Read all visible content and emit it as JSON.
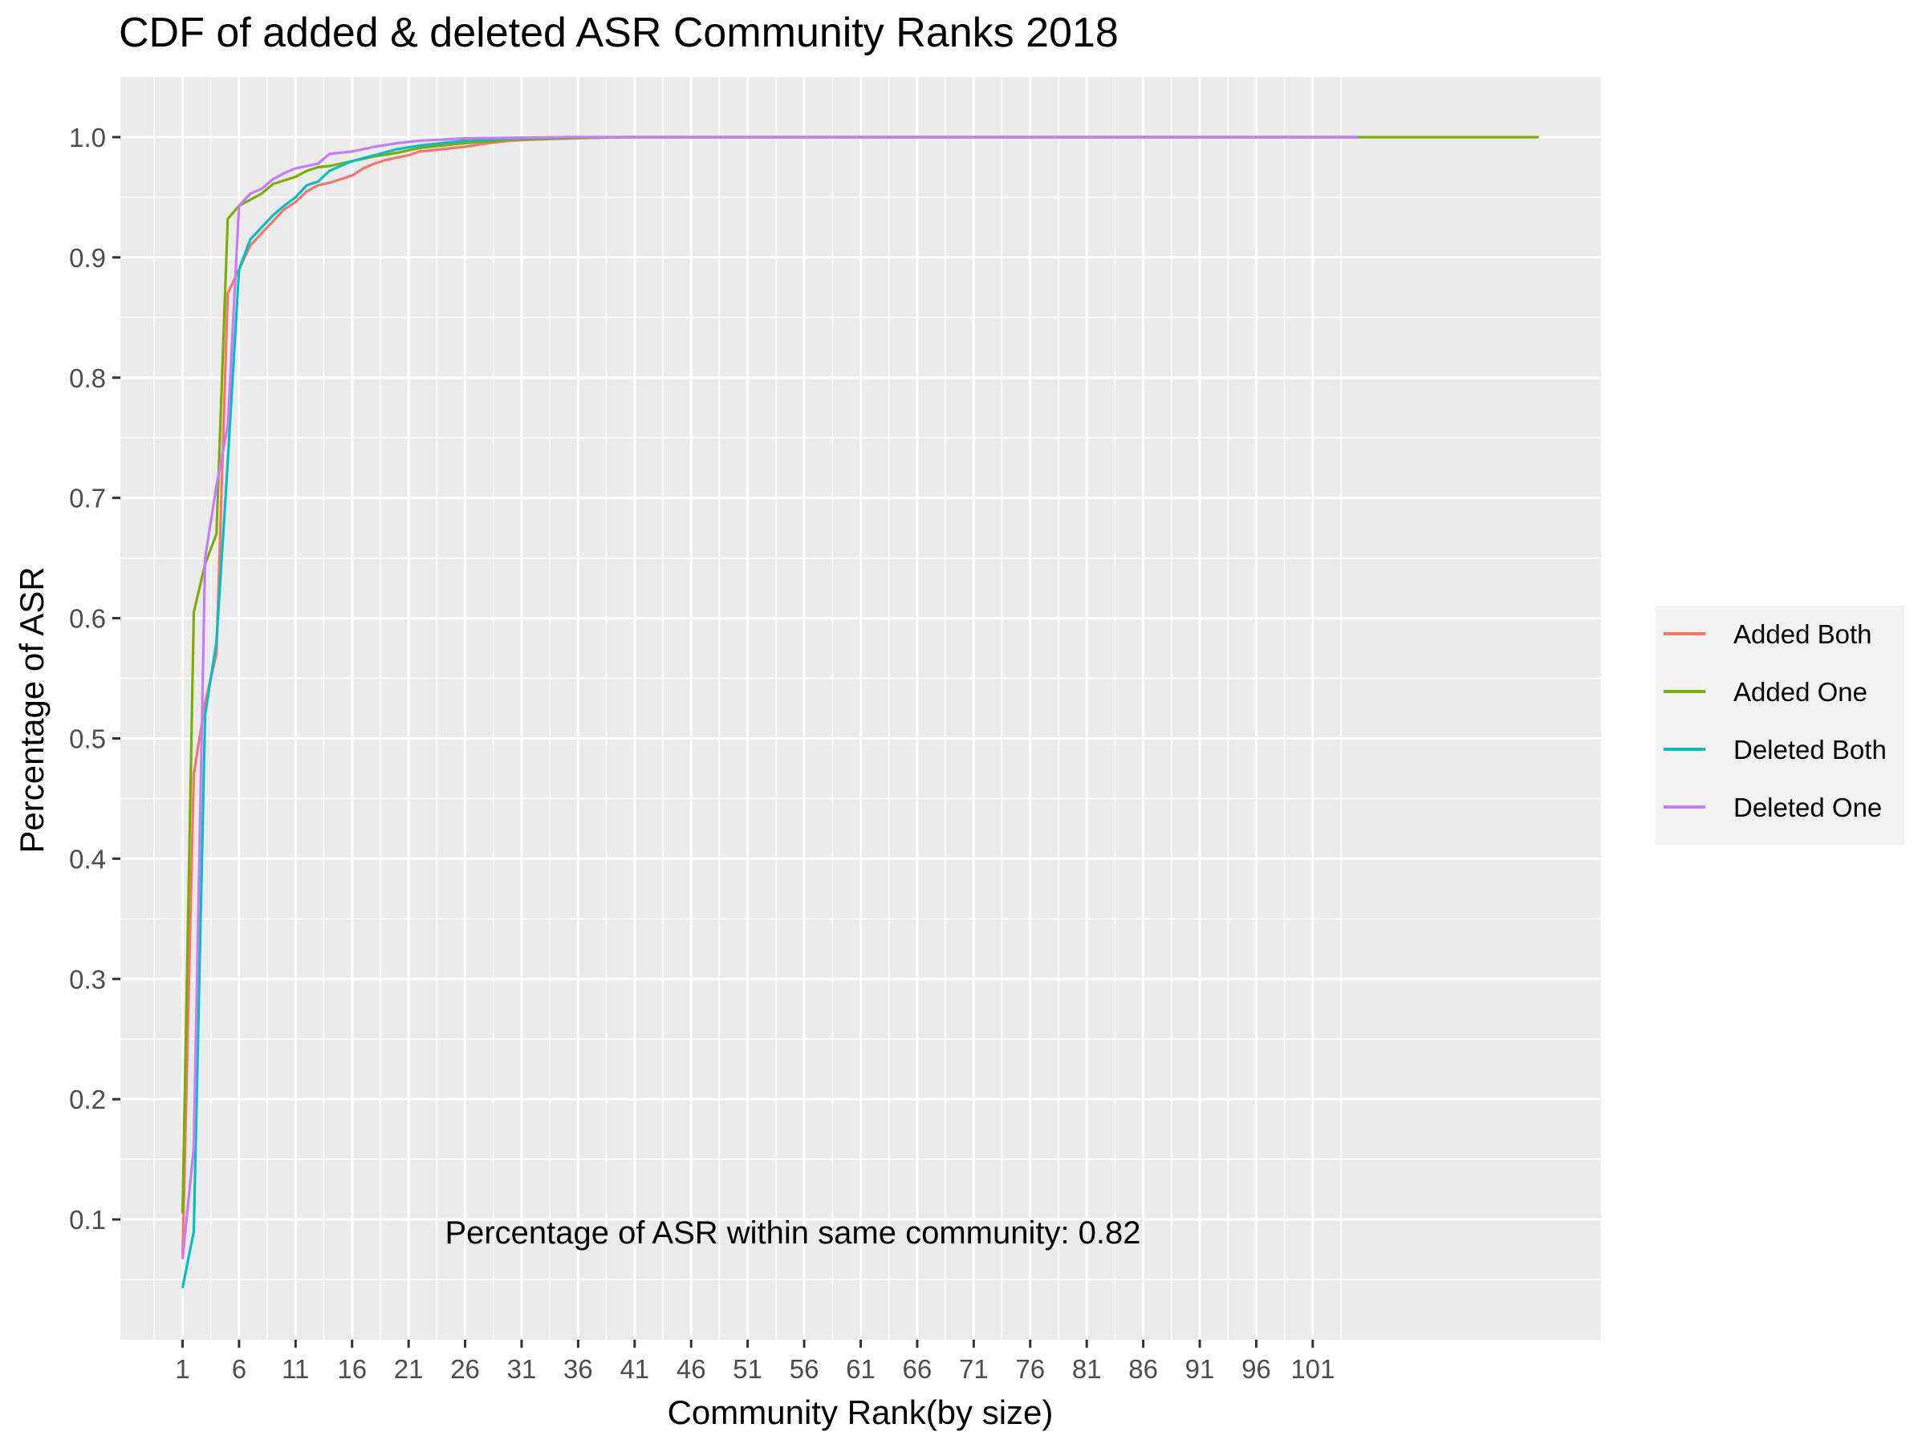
{
  "chart_data": {
    "type": "line",
    "title": "CDF of added & deleted ASR Community Ranks 2018",
    "xlabel": "Community Rank(by size)",
    "ylabel": "Percentage of ASR",
    "xlim": [
      -4.5,
      126.5
    ],
    "ylim": [
      0.0,
      1.05
    ],
    "x_ticks": [
      1,
      6,
      11,
      16,
      21,
      26,
      31,
      36,
      41,
      46,
      51,
      56,
      61,
      66,
      71,
      76,
      81,
      86,
      91,
      96,
      101
    ],
    "y_ticks": [
      0.1,
      0.2,
      0.3,
      0.4,
      0.5,
      0.6,
      0.7,
      0.8,
      0.9,
      1.0
    ],
    "y_tick_labels": [
      "0.1",
      "0.2",
      "0.3",
      "0.4",
      "0.5",
      "0.6",
      "0.7",
      "0.8",
      "0.9",
      "1.0"
    ],
    "grid": true,
    "legend_position": "right",
    "background_color": "#EBEBEB",
    "annotation": "Percentage of ASR within same community: 0.82",
    "annotation_at": [
      55,
      0.08
    ],
    "series": [
      {
        "name": "Added Both",
        "color": "#F8766D",
        "x": [
          1,
          2,
          3,
          4,
          5,
          6,
          7,
          8,
          9,
          10,
          11,
          12,
          13,
          14,
          15,
          16,
          17,
          18,
          19,
          20,
          21,
          22,
          24,
          26,
          28,
          30,
          32,
          35,
          40,
          105
        ],
        "y": [
          0.07,
          0.47,
          0.53,
          0.57,
          0.87,
          0.89,
          0.91,
          0.92,
          0.93,
          0.94,
          0.946,
          0.955,
          0.96,
          0.962,
          0.965,
          0.968,
          0.974,
          0.978,
          0.981,
          0.983,
          0.985,
          0.988,
          0.99,
          0.992,
          0.995,
          0.997,
          0.998,
          0.999,
          1.0,
          1.0
        ]
      },
      {
        "name": "Added One",
        "color": "#7CAE00",
        "x": [
          1,
          2,
          3,
          4,
          5,
          6,
          7,
          8,
          9,
          10,
          11,
          12,
          13,
          14,
          16,
          18,
          20,
          22,
          24,
          26,
          30,
          35,
          40,
          121
        ],
        "y": [
          0.105,
          0.605,
          0.645,
          0.67,
          0.932,
          0.943,
          0.948,
          0.953,
          0.961,
          0.964,
          0.967,
          0.972,
          0.975,
          0.976,
          0.98,
          0.984,
          0.987,
          0.991,
          0.993,
          0.995,
          0.998,
          0.999,
          1.0,
          1.0
        ]
      },
      {
        "name": "Deleted Both",
        "color": "#00BFC4",
        "x": [
          1,
          2,
          3,
          4,
          5,
          6,
          7,
          8,
          9,
          10,
          11,
          12,
          13,
          14,
          15,
          16,
          18,
          20,
          22,
          24,
          26,
          30,
          35,
          40,
          105
        ],
        "y": [
          0.043,
          0.09,
          0.52,
          0.58,
          0.73,
          0.89,
          0.915,
          0.925,
          0.935,
          0.943,
          0.95,
          0.96,
          0.963,
          0.972,
          0.976,
          0.98,
          0.985,
          0.99,
          0.993,
          0.995,
          0.997,
          0.999,
          1.0,
          1.0,
          1.0
        ]
      },
      {
        "name": "Deleted One",
        "color": "#C77CFF",
        "x": [
          1,
          2,
          3,
          4,
          5,
          6,
          7,
          8,
          9,
          10,
          11,
          12,
          13,
          14,
          16,
          18,
          20,
          22,
          24,
          26,
          30,
          35,
          40,
          105
        ],
        "y": [
          0.067,
          0.16,
          0.65,
          0.71,
          0.76,
          0.943,
          0.953,
          0.957,
          0.965,
          0.97,
          0.974,
          0.976,
          0.978,
          0.986,
          0.988,
          0.992,
          0.995,
          0.997,
          0.998,
          0.999,
          0.9995,
          1.0,
          1.0,
          1.0
        ]
      }
    ]
  }
}
